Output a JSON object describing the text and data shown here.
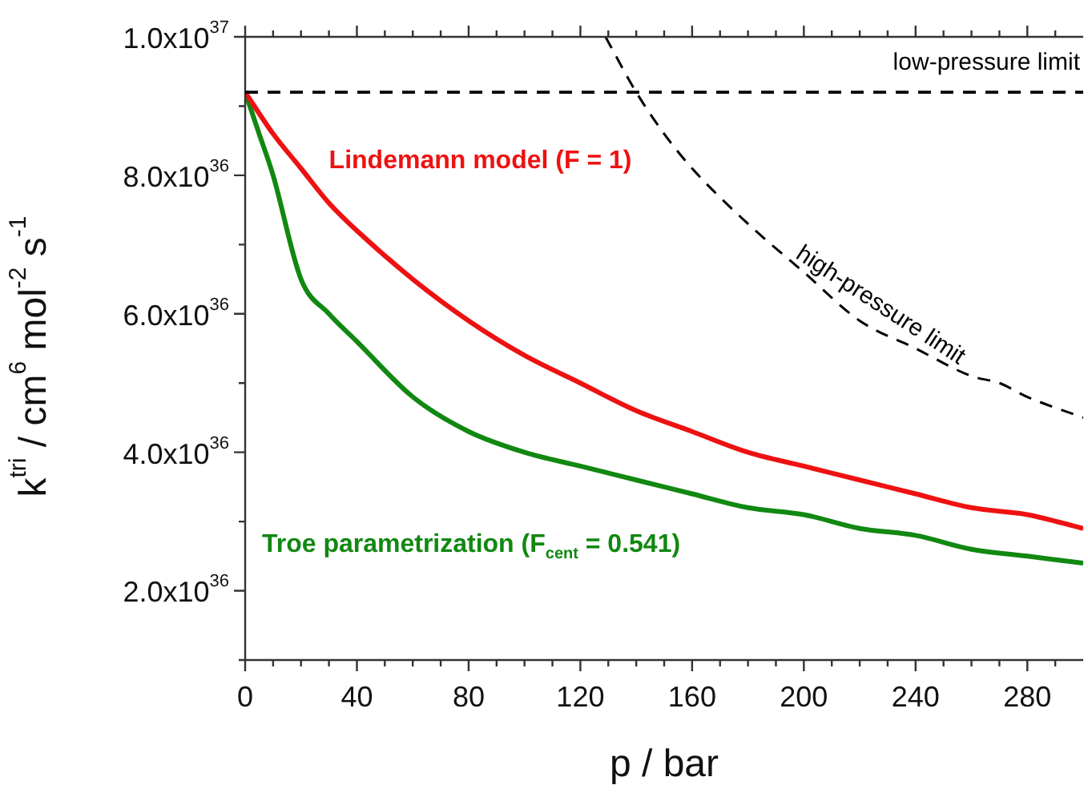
{
  "chart_data": {
    "type": "line",
    "xlabel": "p / bar",
    "ylabel": "k$^{tri}$ / cm$^{6}$ mol$^{-2}$ s$^{-1}$",
    "xlim": [
      0,
      300
    ],
    "ylim": [
      1e+36,
      1e+37
    ],
    "xticks": [
      0,
      {
        "value": 10,
        "label": null
      },
      {
        "value": 20,
        "label": null
      },
      {
        "value": 30,
        "label": null
      },
      40,
      {
        "value": 50,
        "label": null
      },
      {
        "value": 60,
        "label": null
      },
      {
        "value": 70,
        "label": null
      },
      80,
      {
        "value": 90,
        "label": null
      },
      {
        "value": 100,
        "label": null
      },
      {
        "value": 110,
        "label": null
      },
      120,
      {
        "value": 130,
        "label": null
      },
      {
        "value": 140,
        "label": null
      },
      {
        "value": 150,
        "label": null
      },
      160,
      {
        "value": 170,
        "label": null
      },
      {
        "value": 180,
        "label": null
      },
      {
        "value": 190,
        "label": null
      },
      200,
      {
        "value": 210,
        "label": null
      },
      {
        "value": 220,
        "label": null
      },
      {
        "value": 230,
        "label": null
      },
      240,
      {
        "value": 250,
        "label": null
      },
      {
        "value": 260,
        "label": null
      },
      {
        "value": 270,
        "label": null
      },
      280,
      {
        "value": 290,
        "label": null
      }
    ],
    "yticks": [
      {
        "value": 1e+36,
        "label": null
      },
      {
        "value": 2e+36,
        "label": "2.0x10$^{36}$"
      },
      {
        "value": 3e+36,
        "label": null
      },
      {
        "value": 4e+36,
        "label": "4.0x10$^{36}$"
      },
      {
        "value": 5e+36,
        "label": null
      },
      {
        "value": 6e+36,
        "label": "6.0x10$^{36}$"
      },
      {
        "value": 7e+36,
        "label": null
      },
      {
        "value": 8e+36,
        "label": "8.0x10$^{36}$"
      },
      {
        "value": 9e+36,
        "label": null
      },
      {
        "value": 1e+37,
        "label": "1.0x10$^{37}$"
      }
    ],
    "grid": false,
    "legend": false,
    "marker": "none",
    "ref_lines": [
      {
        "axis": "y",
        "value": 9.2e+36,
        "label": "low-pressure limit",
        "color": "#000000",
        "line_style": "dashed"
      }
    ],
    "series": [
      {
        "name": "Lindemann model (F = 1)",
        "color": "#ee1111",
        "line_style": "solid",
        "x": [
          0,
          10,
          20,
          30,
          40,
          60,
          80,
          100,
          120,
          140,
          160,
          180,
          200,
          220,
          240,
          260,
          280,
          300
        ],
        "values": [
          9.2e+36,
          8.6e+36,
          8.1e+36,
          7.6e+36,
          7.2e+36,
          6.5e+36,
          5.9e+36,
          5.4e+36,
          5e+36,
          4.6e+36,
          4.3e+36,
          4e+36,
          3.8e+36,
          3.6e+36,
          3.4e+36,
          3.2e+36,
          3.1e+36,
          2.9e+36
        ]
      },
      {
        "name": "Troe parametrization (F$_{cent}$ = 0.541)",
        "color": "#118811",
        "line_style": "solid",
        "x": [
          0,
          5,
          10,
          20,
          30,
          40,
          60,
          80,
          100,
          120,
          140,
          160,
          180,
          200,
          220,
          240,
          260,
          280,
          300
        ],
        "values": [
          9.2e+36,
          8.6e+36,
          8e+36,
          6.5e+36,
          6e+36,
          5.6e+36,
          4.8e+36,
          4.3e+36,
          4e+36,
          3.8e+36,
          3.6e+36,
          3.4e+36,
          3.2e+36,
          3.1e+36,
          2.9e+36,
          2.8e+36,
          2.6e+36,
          2.5e+36,
          2.4e+36
        ]
      },
      {
        "name": "high-pressure limit",
        "color": "#000000",
        "line_style": "dashed",
        "x": [
          129,
          140,
          150,
          160,
          180,
          200,
          220,
          240,
          260,
          270,
          280,
          300
        ],
        "values": [
          1e+37,
          9.2e+36,
          8.6e+36,
          8.1e+36,
          7.3e+36,
          6.6e+36,
          5.9e+36,
          5.5e+36,
          5.1e+36,
          5e+36,
          4.8e+36,
          4.5e+36
        ]
      }
    ]
  }
}
